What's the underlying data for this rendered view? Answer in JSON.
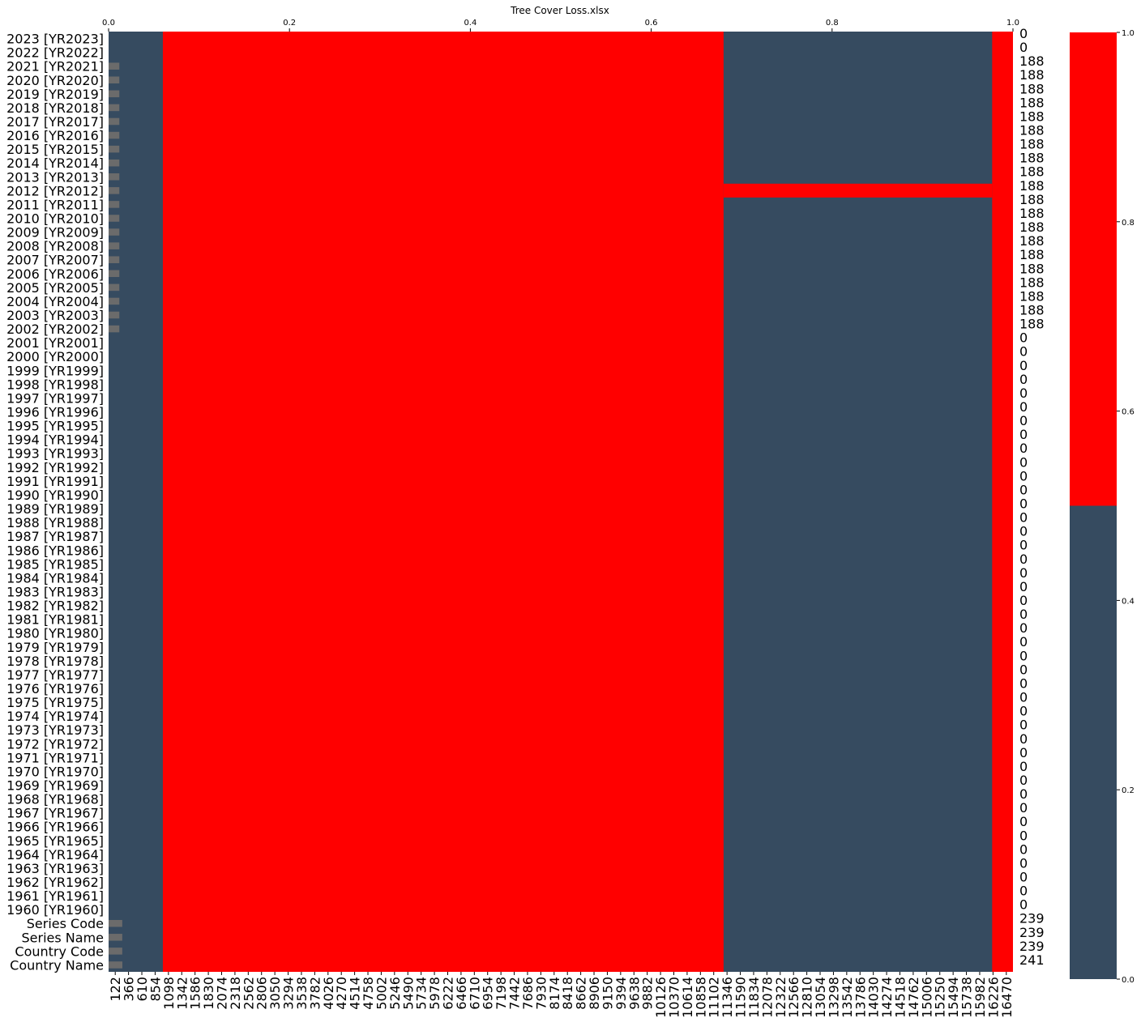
{
  "chart_data": {
    "type": "heatmap",
    "title": "Tree Cover Loss.xlsx",
    "colors": {
      "missing": "#ff0000",
      "present": "#364b60",
      "count_bar": "#6b6b6b"
    },
    "x_axis_top": {
      "ticks": [
        0.0,
        0.2,
        0.4,
        0.6,
        0.8,
        1.0
      ],
      "labels": [
        "0.0",
        "0.2",
        "0.4",
        "0.6",
        "0.8",
        "1.0"
      ],
      "range": [
        0,
        1
      ]
    },
    "x_axis_bottom_labels": [
      "122",
      "366",
      "610",
      "854",
      "1098",
      "1342",
      "1586",
      "1830",
      "2074",
      "2318",
      "2562",
      "2806",
      "3050",
      "3294",
      "3538",
      "3782",
      "4026",
      "4270",
      "4514",
      "4758",
      "5002",
      "5246",
      "5490",
      "5734",
      "5978",
      "6222",
      "6466",
      "6710",
      "6954",
      "7198",
      "7442",
      "7686",
      "7930",
      "8174",
      "8418",
      "8662",
      "8906",
      "9150",
      "9394",
      "9638",
      "9882",
      "10126",
      "10370",
      "10614",
      "10858",
      "11102",
      "11346",
      "11590",
      "11834",
      "12078",
      "12322",
      "12566",
      "12810",
      "13054",
      "13298",
      "13542",
      "13786",
      "14030",
      "14274",
      "14518",
      "14762",
      "15006",
      "15250",
      "15494",
      "15738",
      "15982",
      "16226",
      "16470"
    ],
    "rows": [
      "2023 [YR2023]",
      "2022 [YR2022]",
      "2021 [YR2021]",
      "2020 [YR2020]",
      "2019 [YR2019]",
      "2018 [YR2018]",
      "2017 [YR2017]",
      "2016 [YR2016]",
      "2015 [YR2015]",
      "2014 [YR2014]",
      "2013 [YR2013]",
      "2012 [YR2012]",
      "2011 [YR2011]",
      "2010 [YR2010]",
      "2009 [YR2009]",
      "2008 [YR2008]",
      "2007 [YR2007]",
      "2006 [YR2006]",
      "2005 [YR2005]",
      "2004 [YR2004]",
      "2003 [YR2003]",
      "2002 [YR2002]",
      "2001 [YR2001]",
      "2000 [YR2000]",
      "1999 [YR1999]",
      "1998 [YR1998]",
      "1997 [YR1997]",
      "1996 [YR1996]",
      "1995 [YR1995]",
      "1994 [YR1994]",
      "1993 [YR1993]",
      "1992 [YR1992]",
      "1991 [YR1991]",
      "1990 [YR1990]",
      "1989 [YR1989]",
      "1988 [YR1988]",
      "1987 [YR1987]",
      "1986 [YR1986]",
      "1985 [YR1985]",
      "1984 [YR1984]",
      "1983 [YR1983]",
      "1982 [YR1982]",
      "1981 [YR1981]",
      "1980 [YR1980]",
      "1979 [YR1979]",
      "1978 [YR1978]",
      "1977 [YR1977]",
      "1976 [YR1976]",
      "1975 [YR1975]",
      "1974 [YR1974]",
      "1973 [YR1973]",
      "1972 [YR1972]",
      "1971 [YR1971]",
      "1970 [YR1970]",
      "1969 [YR1969]",
      "1968 [YR1968]",
      "1967 [YR1967]",
      "1966 [YR1966]",
      "1965 [YR1965]",
      "1964 [YR1964]",
      "1963 [YR1963]",
      "1962 [YR1962]",
      "1961 [YR1961]",
      "1960 [YR1960]",
      "Series Code",
      "Series Name",
      "Country Code",
      "Country Name"
    ],
    "row_counts": [
      "0",
      "0",
      "188",
      "188",
      "188",
      "188",
      "188",
      "188",
      "188",
      "188",
      "188",
      "188",
      "188",
      "188",
      "188",
      "188",
      "188",
      "188",
      "188",
      "188",
      "188",
      "188",
      "0",
      "0",
      "0",
      "0",
      "0",
      "0",
      "0",
      "0",
      "0",
      "0",
      "0",
      "0",
      "0",
      "0",
      "0",
      "0",
      "0",
      "0",
      "0",
      "0",
      "0",
      "0",
      "0",
      "0",
      "0",
      "0",
      "0",
      "0",
      "0",
      "0",
      "0",
      "0",
      "0",
      "0",
      "0",
      "0",
      "0",
      "0",
      "0",
      "0",
      "0",
      "0",
      "239",
      "239",
      "239",
      "241"
    ],
    "row_count_values": [
      0,
      0,
      188,
      188,
      188,
      188,
      188,
      188,
      188,
      188,
      188,
      188,
      188,
      188,
      188,
      188,
      188,
      188,
      188,
      188,
      188,
      188,
      0,
      0,
      0,
      0,
      0,
      0,
      0,
      0,
      0,
      0,
      0,
      0,
      0,
      0,
      0,
      0,
      0,
      0,
      0,
      0,
      0,
      0,
      0,
      0,
      0,
      0,
      0,
      0,
      0,
      0,
      0,
      0,
      0,
      0,
      0,
      0,
      0,
      0,
      0,
      0,
      0,
      0,
      239,
      239,
      239,
      241
    ],
    "missing_regions": [
      {
        "x_fraction": [
          0.06,
          0.68
        ],
        "rows": "all"
      },
      {
        "x_fraction": [
          0.68,
          0.977
        ],
        "rows": [
          "2012 [YR2012]"
        ]
      },
      {
        "x_fraction": [
          0.977,
          1.0
        ],
        "rows": "all"
      }
    ],
    "colorbar": {
      "ticks": [
        0.0,
        0.2,
        0.4,
        0.6,
        0.8,
        1.0
      ],
      "labels": [
        "0.0",
        "0.2",
        "0.4",
        "0.6",
        "0.8",
        "1.0"
      ],
      "threshold": 0.5
    }
  }
}
